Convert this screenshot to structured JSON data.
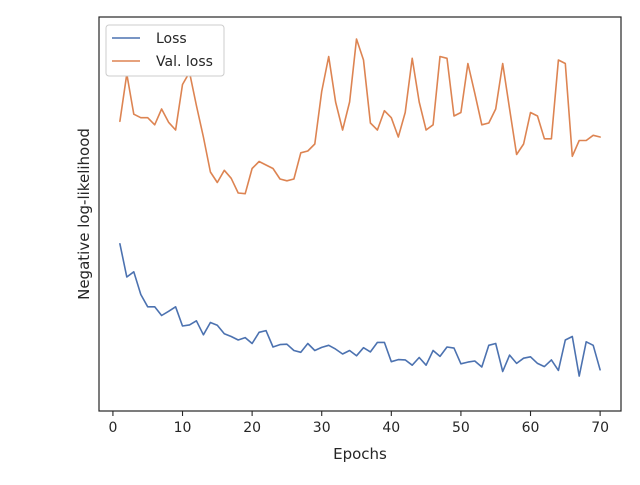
{
  "chart_data": {
    "type": "line",
    "title": "",
    "xlabel": "Epochs",
    "ylabel": "Negative log-likelihood",
    "xlim": [
      -2,
      73
    ],
    "ylim": [
      0.0,
      1.0
    ],
    "y_ticks_shown": false,
    "x_ticks": [
      0,
      10,
      20,
      30,
      40,
      50,
      60,
      70
    ],
    "grid": false,
    "legend_position": "upper-left",
    "series": [
      {
        "name": "Loss",
        "color": "#4c72b0",
        "x": [
          1,
          2,
          3,
          4,
          5,
          6,
          7,
          8,
          9,
          10,
          11,
          12,
          13,
          14,
          15,
          16,
          17,
          18,
          19,
          20,
          21,
          22,
          23,
          24,
          25,
          26,
          27,
          28,
          29,
          30,
          31,
          32,
          33,
          34,
          35,
          36,
          37,
          38,
          39,
          40,
          41,
          42,
          43,
          44,
          45,
          46,
          47,
          48,
          49,
          50,
          51,
          52,
          53,
          54,
          55,
          56,
          57,
          58,
          59,
          60,
          61,
          62,
          63,
          64,
          65,
          66,
          67,
          68,
          69,
          70
        ],
        "y": [
          0.415,
          0.32,
          0.335,
          0.27,
          0.235,
          0.235,
          0.21,
          0.222,
          0.235,
          0.18,
          0.183,
          0.195,
          0.155,
          0.19,
          0.182,
          0.158,
          0.15,
          0.14,
          0.147,
          0.13,
          0.162,
          0.167,
          0.12,
          0.127,
          0.128,
          0.11,
          0.105,
          0.13,
          0.11,
          0.119,
          0.125,
          0.114,
          0.1,
          0.11,
          0.095,
          0.118,
          0.106,
          0.133,
          0.133,
          0.078,
          0.084,
          0.083,
          0.068,
          0.09,
          0.068,
          0.11,
          0.093,
          0.12,
          0.117,
          0.072,
          0.077,
          0.08,
          0.063,
          0.125,
          0.13,
          0.05,
          0.097,
          0.073,
          0.088,
          0.092,
          0.073,
          0.064,
          0.083,
          0.053,
          0.14,
          0.15,
          0.037,
          0.135,
          0.125,
          0.055
        ]
      },
      {
        "name": "Val. loss",
        "color": "#dd8452",
        "x": [
          1,
          2,
          3,
          4,
          5,
          6,
          7,
          8,
          9,
          10,
          11,
          12,
          13,
          14,
          15,
          16,
          17,
          18,
          19,
          20,
          21,
          22,
          23,
          24,
          25,
          26,
          27,
          28,
          29,
          30,
          31,
          32,
          33,
          34,
          35,
          36,
          37,
          38,
          39,
          40,
          41,
          42,
          43,
          44,
          45,
          46,
          47,
          48,
          49,
          50,
          51,
          52,
          53,
          54,
          55,
          56,
          57,
          58,
          59,
          60,
          61,
          62,
          63,
          64,
          65,
          66,
          67,
          68,
          69,
          70
        ],
        "y": [
          0.765,
          0.9,
          0.785,
          0.775,
          0.775,
          0.755,
          0.8,
          0.762,
          0.74,
          0.87,
          0.905,
          0.81,
          0.72,
          0.62,
          0.59,
          0.625,
          0.602,
          0.56,
          0.558,
          0.63,
          0.65,
          0.64,
          0.63,
          0.6,
          0.595,
          0.6,
          0.675,
          0.68,
          0.7,
          0.85,
          0.95,
          0.82,
          0.74,
          0.82,
          1.0,
          0.94,
          0.76,
          0.74,
          0.795,
          0.775,
          0.72,
          0.79,
          0.945,
          0.82,
          0.74,
          0.755,
          0.95,
          0.945,
          0.78,
          0.79,
          0.93,
          0.845,
          0.755,
          0.76,
          0.8,
          0.93,
          0.8,
          0.67,
          0.7,
          0.79,
          0.78,
          0.715,
          0.715,
          0.94,
          0.93,
          0.665,
          0.71,
          0.71,
          0.725,
          0.72
        ]
      }
    ]
  }
}
